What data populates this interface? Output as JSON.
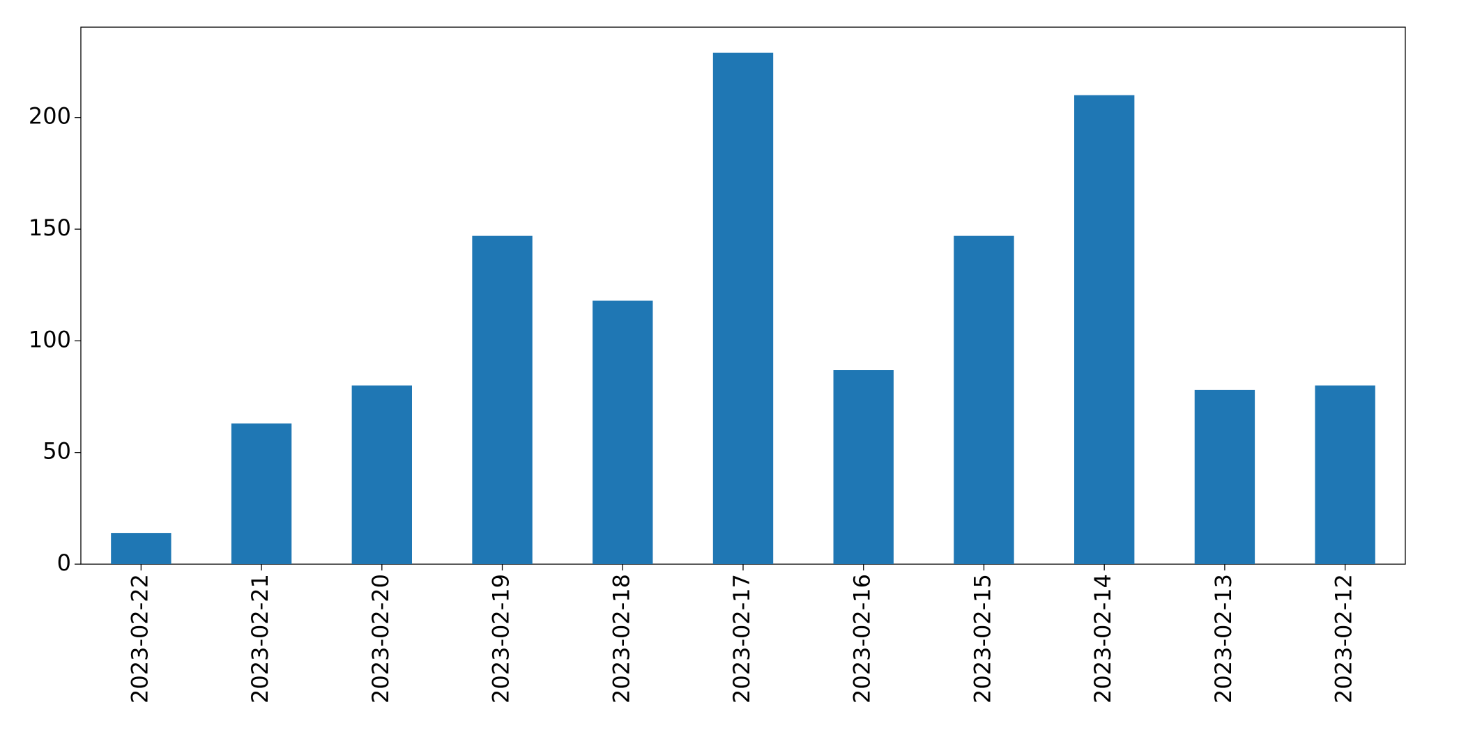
{
  "chart_data": {
    "type": "bar",
    "categories": [
      "2023-02-22",
      "2023-02-21",
      "2023-02-20",
      "2023-02-19",
      "2023-02-18",
      "2023-02-17",
      "2023-02-16",
      "2023-02-15",
      "2023-02-14",
      "2023-02-13",
      "2023-02-12"
    ],
    "values": [
      14,
      63,
      80,
      147,
      118,
      229,
      87,
      147,
      210,
      78,
      80
    ],
    "color": "#1f77b4",
    "ylim": [
      0,
      240.45
    ],
    "yticks": [
      0,
      50,
      100,
      150,
      200
    ],
    "grid": false
  }
}
